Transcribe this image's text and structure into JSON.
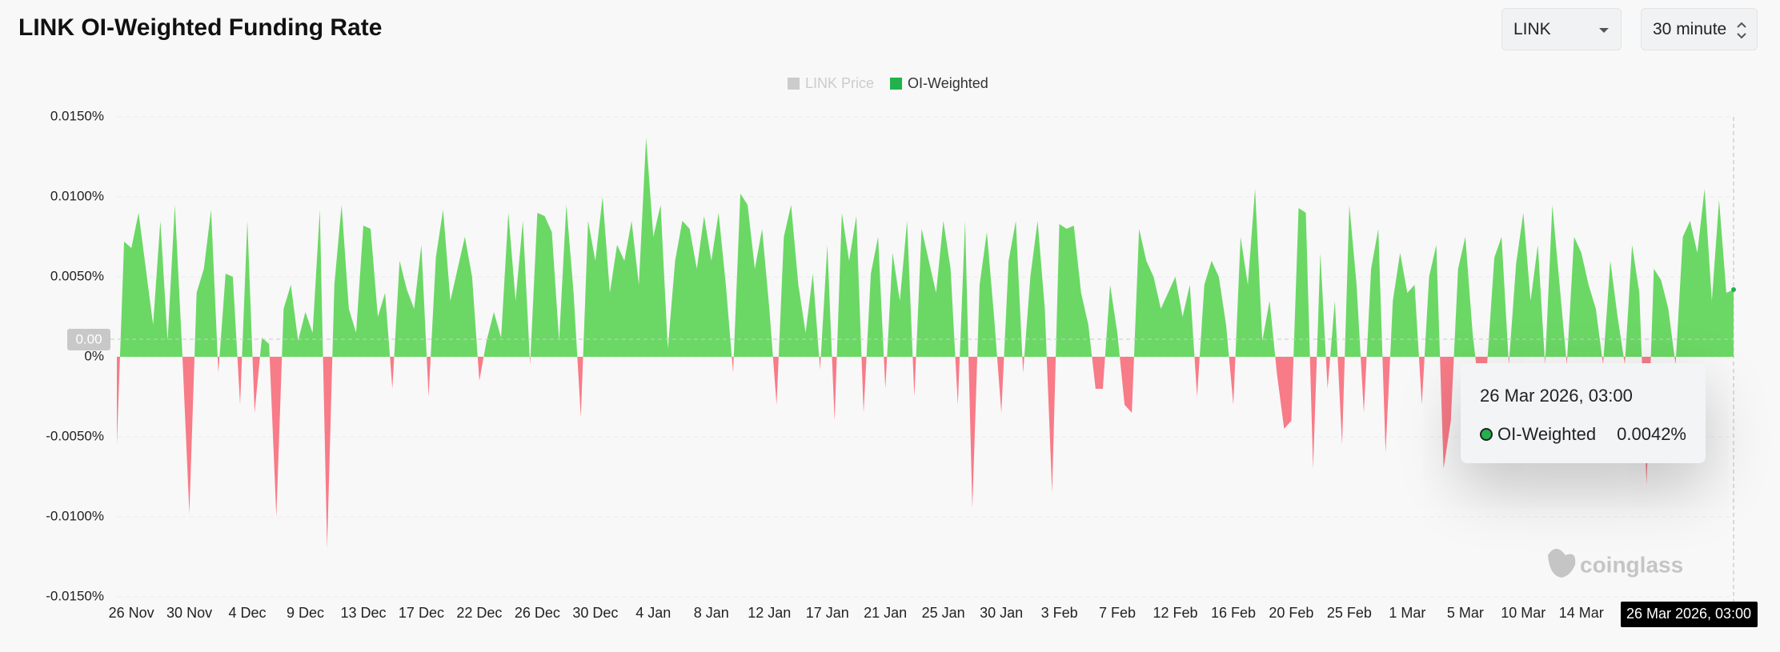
{
  "header": {
    "title": "LINK OI-Weighted Funding Rate",
    "symbol_select": "LINK",
    "interval_select": "30 minute"
  },
  "watermark": "coinglass",
  "chart_data": {
    "type": "area",
    "categories": [
      null,
      null,
      "26 Nov",
      null,
      null,
      null,
      null,
      null,
      null,
      null,
      "30 Nov",
      null,
      null,
      null,
      null,
      null,
      null,
      null,
      "4 Dec",
      null,
      null,
      null,
      null,
      null,
      null,
      null,
      "9 Dec",
      null,
      null,
      null,
      null,
      null,
      null,
      null,
      "13 Dec",
      null,
      null,
      null,
      null,
      null,
      null,
      null,
      "17 Dec",
      null,
      null,
      null,
      null,
      null,
      null,
      null,
      "22 Dec",
      null,
      null,
      null,
      null,
      null,
      null,
      null,
      "26 Dec",
      null,
      null,
      null,
      null,
      null,
      null,
      null,
      "30 Dec",
      null,
      null,
      null,
      null,
      null,
      null,
      null,
      "4 Jan",
      null,
      null,
      null,
      null,
      null,
      null,
      null,
      "8 Jan",
      null,
      null,
      null,
      null,
      null,
      null,
      null,
      "12 Jan",
      null,
      null,
      null,
      null,
      null,
      null,
      null,
      "17 Jan",
      null,
      null,
      null,
      null,
      null,
      null,
      null,
      "21 Jan",
      null,
      null,
      null,
      null,
      null,
      null,
      null,
      "25 Jan",
      null,
      null,
      null,
      null,
      null,
      null,
      null,
      "30 Jan",
      null,
      null,
      null,
      null,
      null,
      null,
      null,
      "3 Feb",
      null,
      null,
      null,
      null,
      null,
      null,
      null,
      "7 Feb",
      null,
      null,
      null,
      null,
      null,
      null,
      null,
      "12 Feb",
      null,
      null,
      null,
      null,
      null,
      null,
      null,
      "16 Feb",
      null,
      null,
      null,
      null,
      null,
      null,
      null,
      "20 Feb",
      null,
      null,
      null,
      null,
      null,
      null,
      null,
      "25 Feb",
      null,
      null,
      null,
      null,
      null,
      null,
      null,
      "1 Mar",
      null,
      null,
      null,
      null,
      null,
      null,
      null,
      "5 Mar",
      null,
      null,
      null,
      null,
      null,
      null,
      null,
      "10 Mar",
      null,
      null,
      null,
      null,
      null,
      null,
      null,
      "14 Mar",
      null,
      null,
      null,
      null,
      null,
      null,
      null,
      null,
      null,
      null,
      null,
      null,
      null,
      null,
      null,
      null,
      null,
      null,
      null,
      null,
      null
    ],
    "series": [
      {
        "name": "LINK Price",
        "color": "#cccccc",
        "visible": false
      },
      {
        "name": "OI-Weighted",
        "color": "#22b14c",
        "visible": true,
        "positive_color": "#6bd865",
        "negative_color": "#f87b88",
        "values": [
          -0.0055,
          0.0072,
          0.0068,
          0.009,
          0.0055,
          0.002,
          0.0085,
          0.001,
          0.0095,
          0.0005,
          -0.0098,
          0.004,
          0.0055,
          0.0092,
          -0.001,
          0.0052,
          0.005,
          -0.003,
          0.0085,
          -0.0035,
          0.0012,
          0.0008,
          -0.01,
          0.003,
          0.0045,
          0.001,
          0.0028,
          0.0015,
          0.0092,
          -0.012,
          0.0045,
          0.0095,
          0.003,
          0.0015,
          0.0082,
          0.008,
          0.0025,
          0.004,
          -0.002,
          0.006,
          0.0042,
          0.003,
          0.007,
          -0.0025,
          0.0062,
          0.0092,
          0.0035,
          0.0055,
          0.0075,
          0.005,
          -0.0015,
          0.001,
          0.0028,
          0.0012,
          0.009,
          0.0035,
          0.0085,
          -0.0005,
          0.009,
          0.0088,
          0.0078,
          0.001,
          0.0095,
          0.004,
          -0.0038,
          0.0085,
          0.006,
          0.01,
          0.004,
          0.007,
          0.006,
          0.0085,
          0.0045,
          0.0137,
          0.0075,
          0.0095,
          0.0005,
          0.006,
          0.0085,
          0.008,
          0.0055,
          0.0088,
          0.006,
          0.009,
          0.0045,
          -0.001,
          0.0102,
          0.0095,
          0.0055,
          0.008,
          0.003,
          -0.003,
          0.0075,
          0.0095,
          0.0045,
          0.0015,
          0.0052,
          -0.0008,
          0.007,
          -0.004,
          0.009,
          0.006,
          0.0088,
          -0.0035,
          0.0052,
          0.0075,
          -0.002,
          0.0065,
          0.0035,
          0.0085,
          -0.0025,
          0.008,
          0.006,
          0.004,
          0.0085,
          0.0055,
          -0.003,
          0.0085,
          -0.0095,
          0.0045,
          0.0078,
          0.0025,
          -0.0035,
          0.006,
          0.0085,
          -0.001,
          0.005,
          0.0085,
          0.003,
          -0.0085,
          0.0083,
          0.008,
          0.0082,
          0.004,
          0.002,
          -0.002,
          -0.002,
          0.0045,
          0.0015,
          -0.003,
          -0.0035,
          0.008,
          0.006,
          0.005,
          0.003,
          0.004,
          0.005,
          0.0025,
          0.0045,
          -0.0025,
          0.0045,
          0.006,
          0.005,
          0.002,
          -0.003,
          0.0075,
          0.0045,
          0.0105,
          0.001,
          0.0035,
          -0.001,
          -0.0045,
          -0.004,
          0.0093,
          0.009,
          -0.007,
          0.0065,
          -0.002,
          0.0035,
          -0.0055,
          0.0095,
          0.0045,
          -0.0035,
          0.0055,
          0.008,
          -0.006,
          0.0035,
          0.0065,
          0.004,
          0.0045,
          -0.003,
          0.005,
          0.007,
          -0.007,
          -0.004,
          0.0055,
          0.0075,
          0.0015,
          -0.0025,
          -0.0005,
          0.0062,
          0.0075,
          -0.0005,
          0.0058,
          0.009,
          0.0035,
          0.007,
          -0.0005,
          0.0095,
          0.0045,
          -0.0005,
          0.0075,
          0.0065,
          0.0045,
          0.003,
          -0.0005,
          0.006,
          0.0025,
          -0.0005,
          0.007,
          0.004,
          -0.008,
          0.0055,
          0.0048,
          0.003,
          -0.0005,
          0.0075,
          0.0085,
          0.0065,
          0.0105,
          0.0035,
          0.0098,
          0.004,
          0.0042
        ]
      }
    ],
    "ylim": [
      -0.015,
      0.015
    ],
    "yticks": [
      {
        "value": 0.015,
        "label": "0.0150%"
      },
      {
        "value": 0.01,
        "label": "0.0100%"
      },
      {
        "value": 0.005,
        "label": "0.0050%"
      },
      {
        "value": 0,
        "label": "0%"
      },
      {
        "value": -0.005,
        "label": "-0.0050%"
      },
      {
        "value": -0.01,
        "label": "-0.0100%"
      },
      {
        "value": -0.015,
        "label": "-0.0150%"
      }
    ],
    "grid": true,
    "legend": "top",
    "crosshair": {
      "x_label": "26 Mar 2026, 03:00",
      "y_label": "0.00"
    },
    "tooltip": {
      "title": "26 Mar 2026, 03:00",
      "series_name": "OI-Weighted",
      "value_label": "0.0042%"
    }
  }
}
